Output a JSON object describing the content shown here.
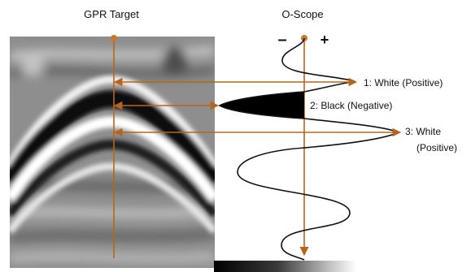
{
  "titles": {
    "left": "GPR Target",
    "right": "O-Scope"
  },
  "scope_signs": {
    "minus": "–",
    "plus": "+"
  },
  "labels": {
    "peak1": "1: White (Positive)",
    "peak2": "2: Black (Negative)",
    "peak3_line1": "3: White",
    "peak3_line2": "(Positive)"
  },
  "colors": {
    "arrow": "#b8651c",
    "wave": "#111111",
    "negative_fill": "#000000"
  }
}
